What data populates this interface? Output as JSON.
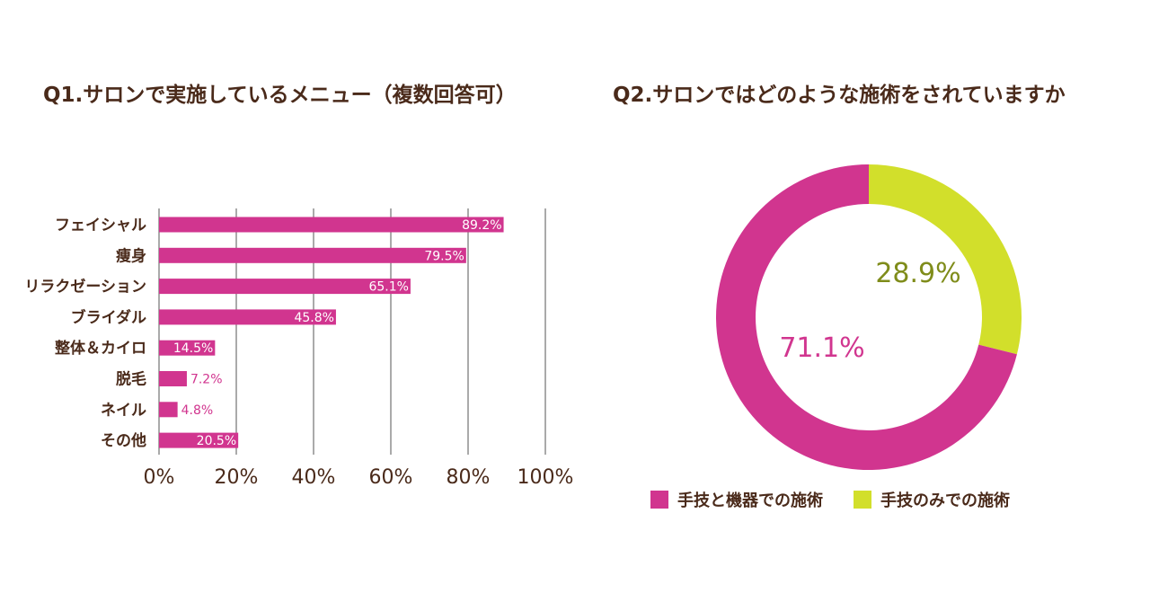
{
  "colors": {
    "magenta": "#d1358f",
    "lime": "#d2df2b",
    "text": "#4a2a1a",
    "grid": "#555555",
    "donut_label_lime": "#7f8c1a"
  },
  "chart_data": [
    {
      "type": "bar",
      "orientation": "horizontal",
      "title": "Q1.サロンで実施しているメニュー（複数回答可）",
      "categories": [
        "フェイシャル",
        "痩身",
        "リラクゼーション",
        "ブライダル",
        "整体＆カイロ",
        "脱毛",
        "ネイル",
        "その他"
      ],
      "values": [
        89.2,
        79.5,
        65.1,
        45.8,
        14.5,
        7.2,
        4.8,
        20.5
      ],
      "value_labels": [
        "89.2%",
        "79.5%",
        "65.1%",
        "45.8%",
        "14.5%",
        "7.2%",
        "4.8%",
        "20.5%"
      ],
      "xlim": [
        0,
        100
      ],
      "xticks": [
        0,
        20,
        40,
        60,
        80,
        100
      ],
      "xtick_labels": [
        "0%",
        "20%",
        "40%",
        "60%",
        "80%",
        "100%"
      ],
      "grid": true
    },
    {
      "type": "pie",
      "style": "donut",
      "title": "Q2.サロンではどのような施術をされていますか",
      "categories": [
        "手技と機器での施術",
        "手技のみでの施術"
      ],
      "values": [
        71.1,
        28.9
      ],
      "value_labels": [
        "71.1%",
        "28.9%"
      ],
      "legend": "bottom"
    }
  ]
}
